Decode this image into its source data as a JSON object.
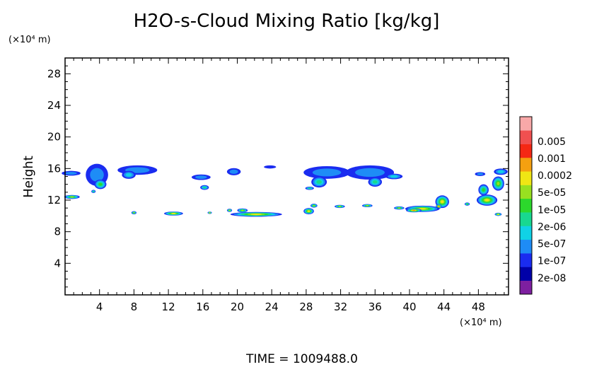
{
  "chart_data": {
    "type": "heatmap",
    "title": "H2O-s-Cloud Mixing Ratio [kg/kg]",
    "ylabel": "Height",
    "xlabel": "",
    "x_unit": "(×10⁴ m)",
    "y_unit": "(×10⁴ m)",
    "x_range": [
      0,
      51.5
    ],
    "y_range": [
      0,
      30
    ],
    "x_ticks": [
      "4",
      "8",
      "12",
      "16",
      "20",
      "24",
      "28",
      "32",
      "36",
      "40",
      "44",
      "48"
    ],
    "y_ticks": [
      "4",
      "8",
      "12",
      "16",
      "20",
      "24",
      "28"
    ],
    "colorbar": {
      "labels": [
        "0.005",
        "0.001",
        "0.0002",
        "5e-05",
        "1e-05",
        "2e-06",
        "5e-07",
        "1e-07",
        "2e-08"
      ],
      "colors": [
        "#7e1fa0",
        "#0000a8",
        "#1a2cf0",
        "#1e8cf6",
        "#10d2e6",
        "#18d890",
        "#2cd82c",
        "#98e020",
        "#f0e614",
        "#f5a010",
        "#f52814",
        "#f05050",
        "#f8a8a8"
      ]
    },
    "clouds": [
      {
        "x": 0.7,
        "y": 15.4,
        "w": 2.2,
        "h": 0.6,
        "level": 3
      },
      {
        "x": 3.7,
        "y": 15.2,
        "w": 2.6,
        "h": 2.8,
        "level": 3
      },
      {
        "x": 4.1,
        "y": 14.0,
        "w": 1.4,
        "h": 1.2,
        "level": 6
      },
      {
        "x": 0.8,
        "y": 12.4,
        "w": 1.8,
        "h": 0.5,
        "level": 7
      },
      {
        "x": 3.3,
        "y": 13.1,
        "w": 0.5,
        "h": 0.4,
        "level": 5
      },
      {
        "x": 8.4,
        "y": 15.8,
        "w": 4.6,
        "h": 1.2,
        "level": 3
      },
      {
        "x": 7.4,
        "y": 15.2,
        "w": 1.6,
        "h": 1.0,
        "level": 4
      },
      {
        "x": 15.8,
        "y": 14.9,
        "w": 2.2,
        "h": 0.7,
        "level": 3
      },
      {
        "x": 16.2,
        "y": 13.6,
        "w": 1.0,
        "h": 0.6,
        "level": 5
      },
      {
        "x": 19.6,
        "y": 15.6,
        "w": 1.6,
        "h": 0.9,
        "level": 3
      },
      {
        "x": 23.8,
        "y": 16.2,
        "w": 1.4,
        "h": 0.4,
        "level": 2
      },
      {
        "x": 30.4,
        "y": 15.5,
        "w": 5.4,
        "h": 1.6,
        "level": 3
      },
      {
        "x": 29.5,
        "y": 14.3,
        "w": 1.8,
        "h": 1.4,
        "level": 5
      },
      {
        "x": 35.4,
        "y": 15.5,
        "w": 5.6,
        "h": 1.8,
        "level": 3
      },
      {
        "x": 36.0,
        "y": 14.3,
        "w": 1.6,
        "h": 1.2,
        "level": 5
      },
      {
        "x": 38.2,
        "y": 15.0,
        "w": 2.0,
        "h": 0.7,
        "level": 4
      },
      {
        "x": 28.4,
        "y": 13.5,
        "w": 1.0,
        "h": 0.4,
        "level": 5
      },
      {
        "x": 48.2,
        "y": 15.3,
        "w": 1.2,
        "h": 0.5,
        "level": 3
      },
      {
        "x": 50.6,
        "y": 15.6,
        "w": 1.6,
        "h": 0.8,
        "level": 4
      },
      {
        "x": 48.6,
        "y": 13.3,
        "w": 1.2,
        "h": 1.4,
        "level": 6
      },
      {
        "x": 50.3,
        "y": 14.1,
        "w": 1.4,
        "h": 1.8,
        "level": 7
      },
      {
        "x": 49.0,
        "y": 12.0,
        "w": 2.4,
        "h": 1.4,
        "level": 8
      },
      {
        "x": 43.8,
        "y": 11.8,
        "w": 1.6,
        "h": 1.6,
        "level": 8
      },
      {
        "x": 43.4,
        "y": 11.2,
        "w": 0.7,
        "h": 0.6,
        "level": 9
      },
      {
        "x": 41.5,
        "y": 10.9,
        "w": 4.0,
        "h": 0.8,
        "level": 8
      },
      {
        "x": 40.5,
        "y": 10.7,
        "w": 1.8,
        "h": 0.5,
        "level": 9
      },
      {
        "x": 38.8,
        "y": 11.0,
        "w": 1.2,
        "h": 0.4,
        "level": 7
      },
      {
        "x": 22.2,
        "y": 10.2,
        "w": 6.0,
        "h": 0.6,
        "level": 8
      },
      {
        "x": 20.6,
        "y": 10.7,
        "w": 1.2,
        "h": 0.5,
        "level": 7
      },
      {
        "x": 19.1,
        "y": 10.7,
        "w": 0.6,
        "h": 0.4,
        "level": 7
      },
      {
        "x": 12.6,
        "y": 10.3,
        "w": 2.2,
        "h": 0.5,
        "level": 8
      },
      {
        "x": 8.0,
        "y": 10.4,
        "w": 0.6,
        "h": 0.4,
        "level": 7
      },
      {
        "x": 16.8,
        "y": 10.4,
        "w": 0.5,
        "h": 0.3,
        "level": 7
      },
      {
        "x": 28.3,
        "y": 10.6,
        "w": 1.2,
        "h": 0.8,
        "level": 8
      },
      {
        "x": 28.9,
        "y": 11.3,
        "w": 0.8,
        "h": 0.5,
        "level": 7
      },
      {
        "x": 31.9,
        "y": 11.2,
        "w": 1.2,
        "h": 0.4,
        "level": 7
      },
      {
        "x": 35.1,
        "y": 11.3,
        "w": 1.2,
        "h": 0.4,
        "level": 7
      },
      {
        "x": 46.7,
        "y": 11.5,
        "w": 0.6,
        "h": 0.4,
        "level": 6
      },
      {
        "x": 50.3,
        "y": 10.2,
        "w": 0.8,
        "h": 0.4,
        "level": 8
      }
    ]
  },
  "time_label": "TIME  =  1009488.0"
}
